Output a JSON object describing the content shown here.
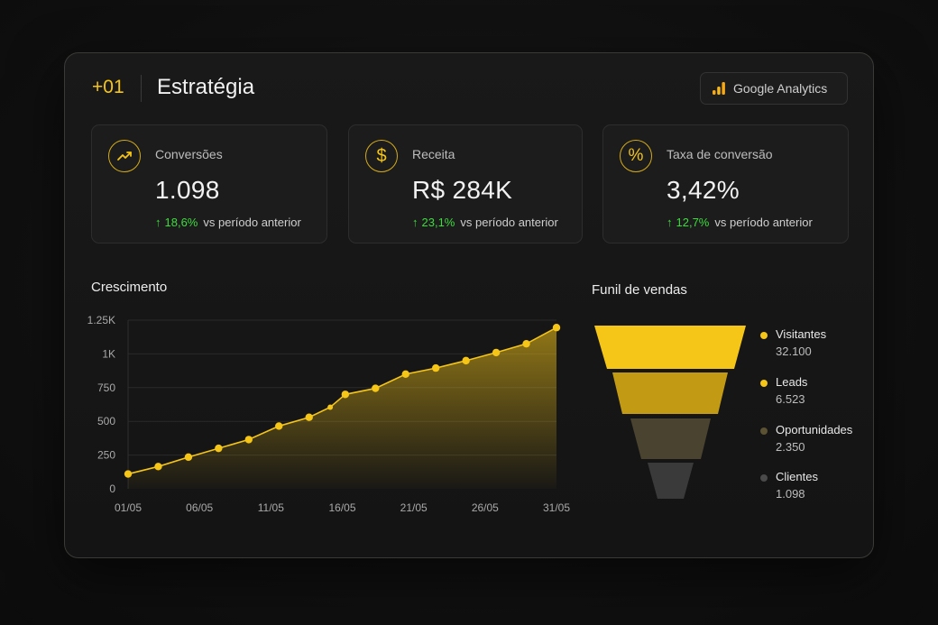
{
  "header": {
    "number": "+01",
    "title": "Estratégia",
    "ga_button_label": "Google Analytics",
    "ga_icon": "analytics-bars-icon"
  },
  "cards": [
    {
      "icon": "trending-up-icon",
      "label": "Conversões",
      "value": "1.098",
      "delta": "18,6%",
      "delta_suffix": "vs período anterior"
    },
    {
      "icon": "dollar-icon",
      "label": "Receita",
      "value": "R$ 284K",
      "delta": "23,1%",
      "delta_suffix": "vs período anterior"
    },
    {
      "icon": "percent-icon",
      "label": "Taxa de conversão",
      "value": "3,42%",
      "delta": "12,7%",
      "delta_suffix": "vs período anterior"
    }
  ],
  "chart_data": {
    "type": "area",
    "title": "Crescimento",
    "xlabel": "",
    "ylabel": "",
    "x_ticks": [
      "01/05",
      "06/05",
      "11/05",
      "16/05",
      "21/05",
      "26/05",
      "31/05"
    ],
    "y_ticks": [
      "0",
      "250",
      "500",
      "750",
      "1K",
      "1.25K"
    ],
    "ylim": [
      0,
      1250
    ],
    "grid": true,
    "series": [
      {
        "color": "#f5c518",
        "points": [
          [
            0,
            110
          ],
          [
            1,
            165
          ],
          [
            2,
            235
          ],
          [
            3,
            300
          ],
          [
            4,
            365
          ],
          [
            5,
            465
          ],
          [
            6,
            530
          ],
          [
            6.7,
            605
          ],
          [
            7.2,
            700
          ],
          [
            8.2,
            745
          ],
          [
            9.2,
            850
          ],
          [
            10.2,
            895
          ],
          [
            11.2,
            950
          ],
          [
            12.2,
            1010
          ],
          [
            13.2,
            1075
          ],
          [
            14.2,
            1195
          ]
        ]
      }
    ],
    "x_tick_positions": [
      0,
      2.5,
      5,
      7.5,
      10,
      12.5,
      15
    ]
  },
  "funnel": {
    "title": "Funil de vendas",
    "stages": [
      {
        "name": "Visitantes",
        "value": "32.100",
        "color": "#f5c518"
      },
      {
        "name": "Leads",
        "value": "6.523",
        "color": "#c29a14"
      },
      {
        "name": "Oportunidades",
        "value": "2.350",
        "color": "#4a4330"
      },
      {
        "name": "Clientes",
        "value": "1.098",
        "color": "#3a3a3a"
      }
    ]
  }
}
